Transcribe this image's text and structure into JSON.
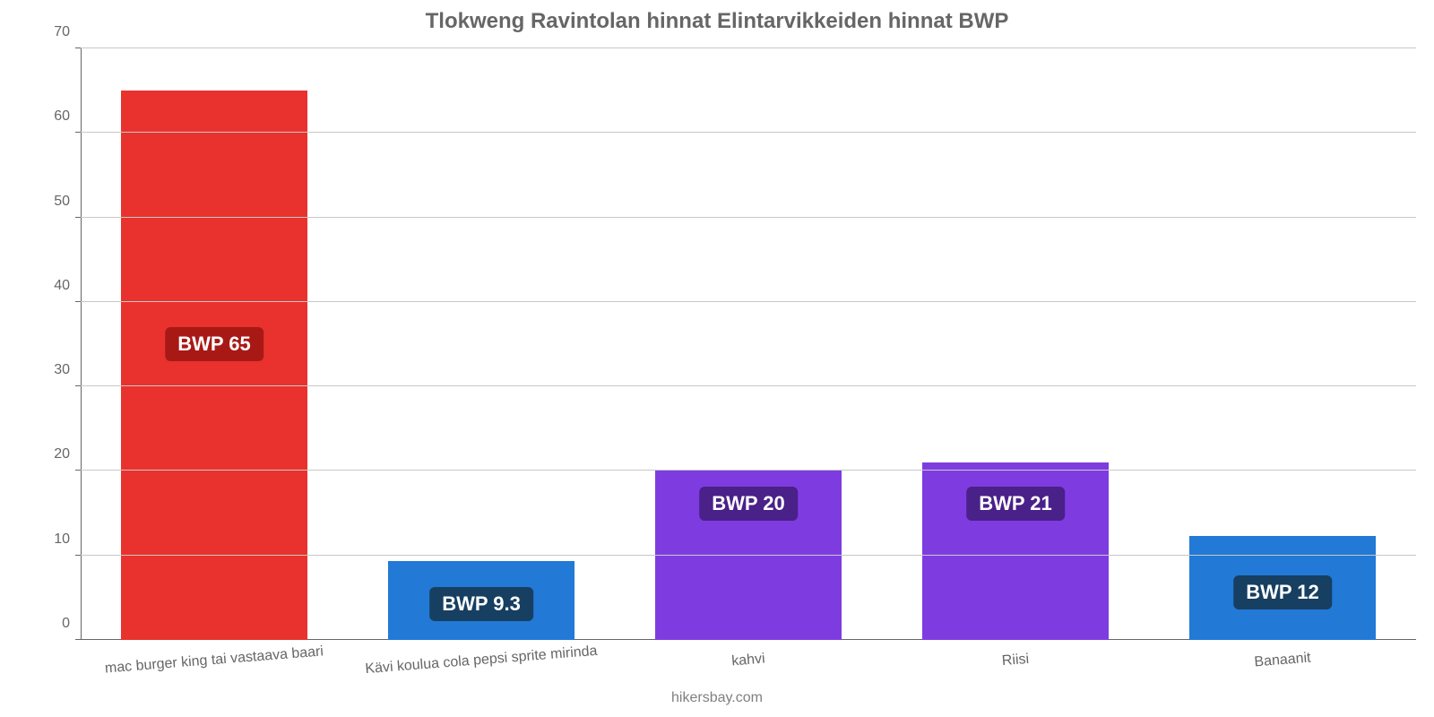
{
  "chart": {
    "type": "bar",
    "title": "Tlokweng Ravintolan hinnat Elintarvikkeiden hinnat BWP",
    "title_fontsize": 24,
    "title_color": "#666666",
    "background_color": "#ffffff",
    "axis_color": "#666666",
    "grid_color": "#c8c8c8",
    "tick_color": "#666666",
    "tick_fontsize": 16,
    "xlabel_fontsize": 16,
    "xlabel_color": "#666666",
    "xlabel_rotation_deg": -4.5,
    "ylim": [
      0,
      70
    ],
    "ytick_step": 10,
    "bar_width_pct": 14,
    "bar_gap_pct": 6,
    "yticks": [
      {
        "value": 0,
        "label": "0"
      },
      {
        "value": 10,
        "label": "10"
      },
      {
        "value": 20,
        "label": "20"
      },
      {
        "value": 30,
        "label": "30"
      },
      {
        "value": 40,
        "label": "40"
      },
      {
        "value": 50,
        "label": "50"
      },
      {
        "value": 60,
        "label": "60"
      },
      {
        "value": 70,
        "label": "70"
      }
    ],
    "categories": [
      "mac burger king tai vastaava baari",
      "Kävi koulua cola pepsi sprite mirinda",
      "kahvi",
      "Riisi",
      "Banaanit"
    ],
    "values": [
      65,
      9.3,
      20,
      21,
      12.3
    ],
    "bar_colors": [
      "#e9322d",
      "#2279d6",
      "#7e3ce0",
      "#7e3ce0",
      "#2279d6"
    ],
    "value_labels": [
      "BWP 65",
      "BWP 9.3",
      "BWP 20",
      "BWP 21",
      "BWP 12"
    ],
    "value_label_bg": [
      "#a81916",
      "#163f61",
      "#4a2089",
      "#4a2089",
      "#163f61"
    ],
    "value_label_fontsize": 22,
    "value_label_text_color": "#ffffff",
    "value_label_vpos_pct": [
      50,
      94,
      77,
      77,
      92
    ],
    "attribution": "hikersbay.com",
    "attribution_color": "#808080",
    "attribution_fontsize": 16
  }
}
